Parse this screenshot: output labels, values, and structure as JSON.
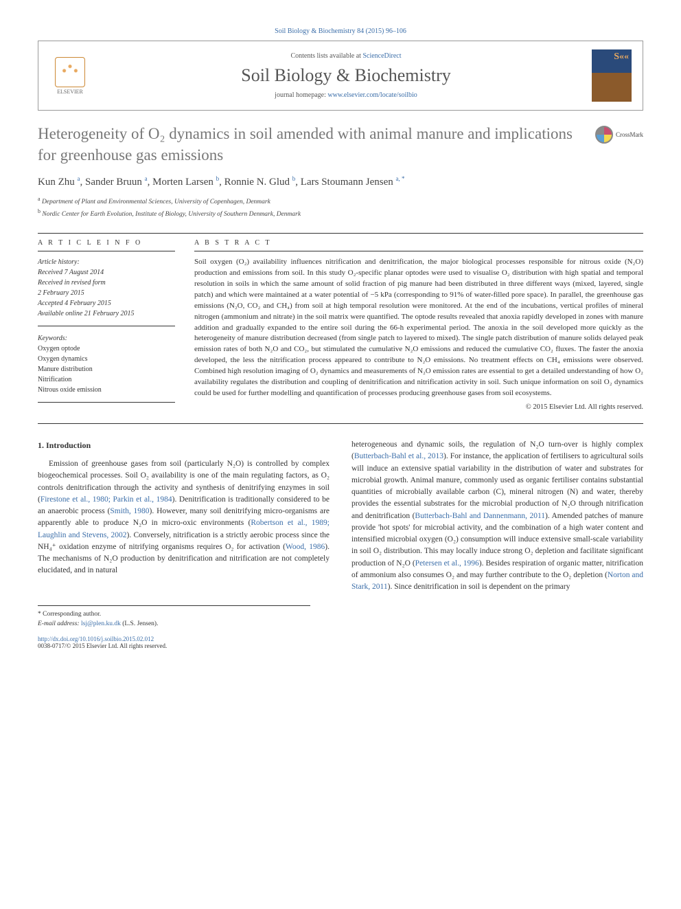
{
  "journal_header_line": "Soil Biology & Biochemistry 84 (2015) 96–106",
  "header_box": {
    "contents_prefix": "Contents lists available at ",
    "contents_link": "ScienceDirect",
    "journal_name": "Soil Biology & Biochemistry",
    "homepage_prefix": "journal homepage: ",
    "homepage_link": "www.elsevier.com/locate/soilbio",
    "publisher": "ELSEVIER"
  },
  "title": "Heterogeneity of O₂ dynamics in soil amended with animal manure and implications for greenhouse gas emissions",
  "crossmark": "CrossMark",
  "authors_html": "Kun Zhu <sup>a</sup>, Sander Bruun <sup>a</sup>, Morten Larsen <sup>b</sup>, Ronnie N. Glud <sup>b</sup>, Lars Stoumann Jensen <sup>a, *</sup>",
  "affiliations": [
    "a Department of Plant and Environmental Sciences, University of Copenhagen, Denmark",
    "b Nordic Center for Earth Evolution, Institute of Biology, University of Southern Denmark, Denmark"
  ],
  "article_info_label": "A R T I C L E   I N F O",
  "abstract_label": "A B S T R A C T",
  "history": {
    "label": "Article history:",
    "lines": [
      "Received 7 August 2014",
      "Received in revised form",
      "2 February 2015",
      "Accepted 4 February 2015",
      "Available online 21 February 2015"
    ]
  },
  "keywords": {
    "label": "Keywords:",
    "items": [
      "Oxygen optode",
      "Oxygen dynamics",
      "Manure distribution",
      "Nitrification",
      "Nitrous oxide emission"
    ]
  },
  "abstract": "Soil oxygen (O₂) availability influences nitrification and denitrification, the major biological processes responsible for nitrous oxide (N₂O) production and emissions from soil. In this study O₂-specific planar optodes were used to visualise O₂ distribution with high spatial and temporal resolution in soils in which the same amount of solid fraction of pig manure had been distributed in three different ways (mixed, layered, single patch) and which were maintained at a water potential of −5 kPa (corresponding to 91% of water-filled pore space). In parallel, the greenhouse gas emissions (N₂O, CO₂ and CH₄) from soil at high temporal resolution were monitored. At the end of the incubations, vertical profiles of mineral nitrogen (ammonium and nitrate) in the soil matrix were quantified. The optode results revealed that anoxia rapidly developed in zones with manure addition and gradually expanded to the entire soil during the 66-h experimental period. The anoxia in the soil developed more quickly as the heterogeneity of manure distribution decreased (from single patch to layered to mixed). The single patch distribution of manure solids delayed peak emission rates of both N₂O and CO₂, but stimulated the cumulative N₂O emissions and reduced the cumulative CO₂ fluxes. The faster the anoxia developed, the less the nitrification process appeared to contribute to N₂O emissions. No treatment effects on CH₄ emissions were observed. Combined high resolution imaging of O₂ dynamics and measurements of N₂O emission rates are essential to get a detailed understanding of how O₂ availability regulates the distribution and coupling of denitrification and nitrification activity in soil. Such unique information on soil O₂ dynamics could be used for further modelling and quantification of processes producing greenhouse gases from soil ecosystems.",
  "copyright": "© 2015 Elsevier Ltd. All rights reserved.",
  "section_heading": "1. Introduction",
  "body_col1": "Emission of greenhouse gases from soil (particularly N₂O) is controlled by complex biogeochemical processes. Soil O₂ availability is one of the main regulating factors, as O₂ controls denitrification through the activity and synthesis of denitrifying enzymes in soil (|Firestone et al., 1980; Parkin et al., 1984|). Denitrification is traditionally considered to be an anaerobic process (|Smith, 1980|). However, many soil denitrifying micro-organisms are apparently able to produce N₂O in micro-oxic environments (|Robertson et al., 1989; Laughlin and Stevens, 2002|). Conversely, nitrification is a strictly aerobic process since the NH₄⁺ oxidation enzyme of nitrifying organisms requires O₂ for activation (|Wood, 1986|). The mechanisms of N₂O production by denitrification and nitrification are not completely elucidated, and in natural",
  "body_col2": "heterogeneous and dynamic soils, the regulation of N₂O turn-over is highly complex (|Butterbach-Bahl et al., 2013|). For instance, the application of fertilisers to agricultural soils will induce an extensive spatial variability in the distribution of water and substrates for microbial growth. Animal manure, commonly used as organic fertiliser contains substantial quantities of microbially available carbon (C), mineral nitrogen (N) and water, thereby provides the essential substrates for the microbial production of N₂O through nitrification and denitrification (|Butterbach-Bahl and Dannenmann, 2011|). Amended patches of manure provide 'hot spots' for microbial activity, and the combination of a high water content and intensified microbial oxygen (O₂) consumption will induce extensive small-scale variability in soil O₂ distribution. This may locally induce strong O₂ depletion and facilitate significant production of N₂O (|Petersen et al., 1996|). Besides respiration of organic matter, nitrification of ammonium also consumes O₂ and may further contribute to the O₂ depletion (|Norton and Stark, 2011|). Since denitrification in soil is dependent on the primary",
  "footnote": {
    "corr": "* Corresponding author.",
    "email_label": "E-mail address: ",
    "email": "lsj@plen.ku.dk",
    "email_suffix": " (L.S. Jensen)."
  },
  "footer": {
    "doi": "http://dx.doi.org/10.1016/j.soilbio.2015.02.012",
    "issn_line": "0038-0717/© 2015 Elsevier Ltd. All rights reserved."
  },
  "colors": {
    "link": "#3a6da8",
    "title_gray": "#777777",
    "text": "#333333",
    "border": "#999999"
  },
  "typography": {
    "body_fontsize_pt": 11.5,
    "abstract_fontsize_pt": 11,
    "title_fontsize_pt": 23,
    "journal_title_fontsize_pt": 26,
    "small_fontsize_pt": 10
  }
}
